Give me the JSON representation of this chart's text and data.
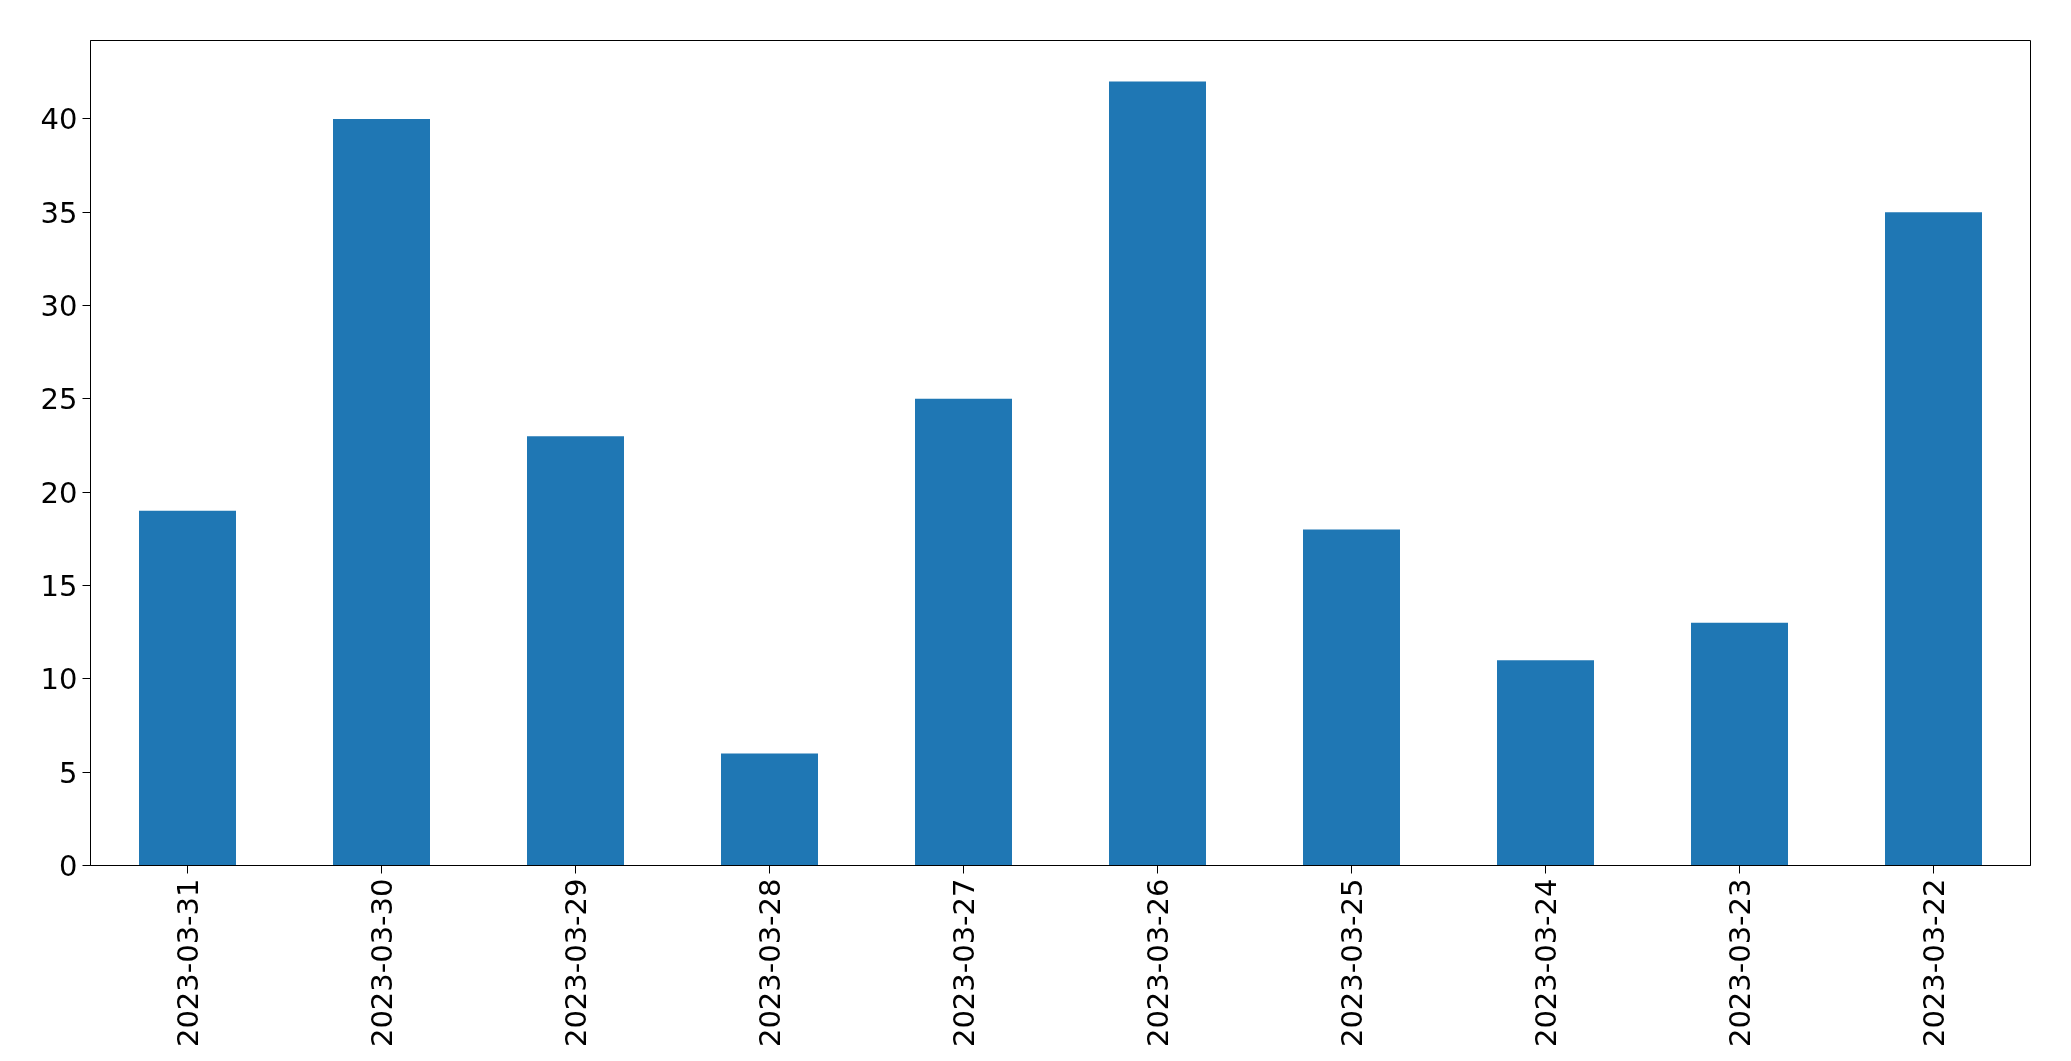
{
  "chart_data": {
    "type": "bar",
    "categories": [
      "2023-03-31",
      "2023-03-30",
      "2023-03-29",
      "2023-03-28",
      "2023-03-27",
      "2023-03-26",
      "2023-03-25",
      "2023-03-24",
      "2023-03-23",
      "2023-03-22"
    ],
    "values": [
      19,
      40,
      23,
      6,
      25,
      42,
      18,
      11,
      13,
      35
    ],
    "color": "#1f77b4",
    "ylim": [
      0,
      44.2
    ],
    "yticks": [
      0,
      5,
      10,
      15,
      20,
      25,
      30,
      35,
      40
    ],
    "grid": false
  }
}
